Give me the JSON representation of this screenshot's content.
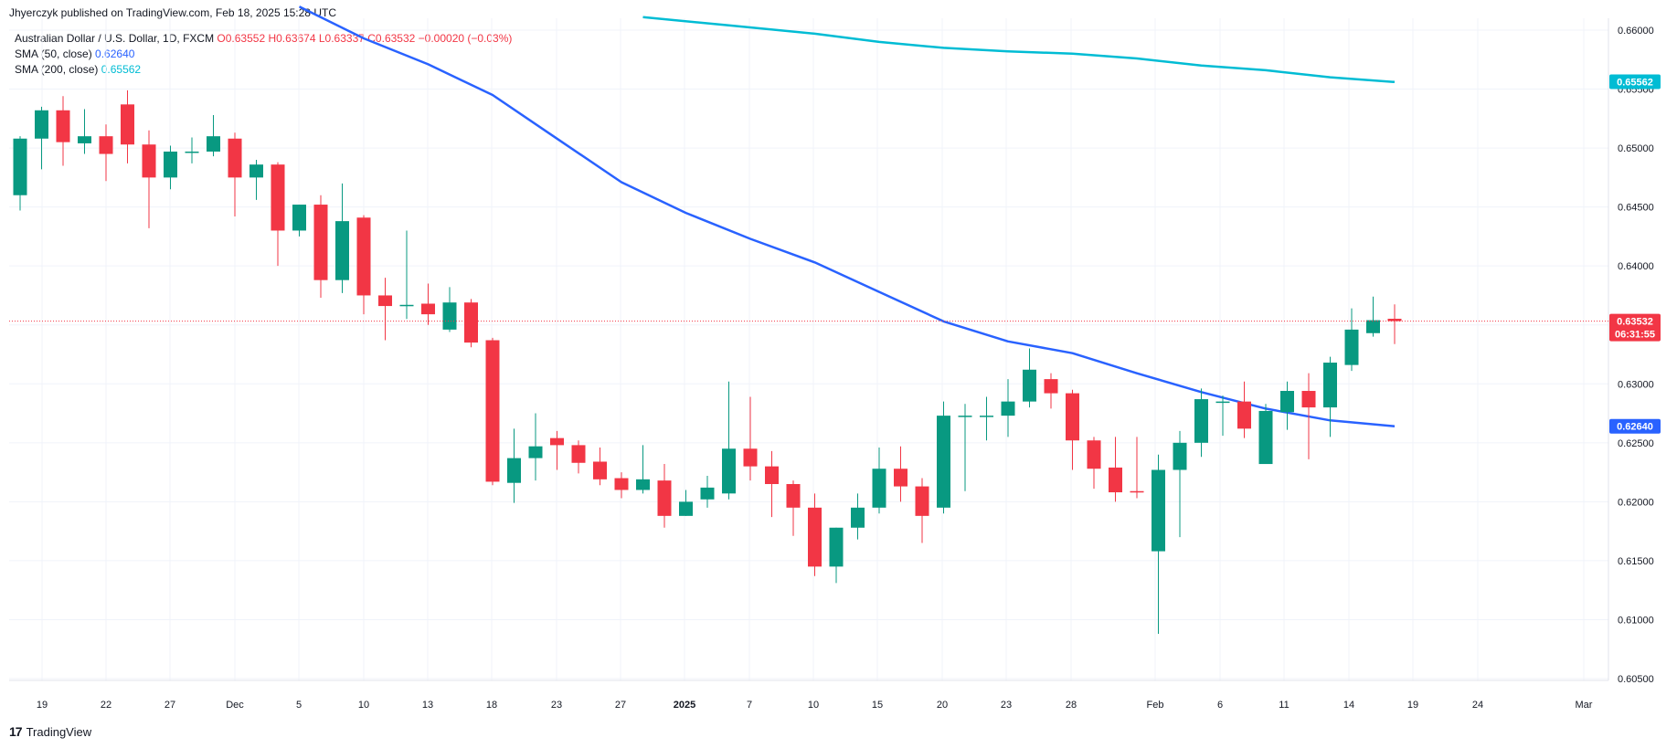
{
  "header": {
    "publisher": "Jhyerczyk published on TradingView.com, Feb 18, 2025 15:28 UTC"
  },
  "legend": {
    "symbol": "Australian Dollar / U.S. Dollar, 1D, FXCM",
    "open": "O0.63552",
    "high": "H0.63674",
    "low": "L0.63337",
    "close": "C0.63532",
    "change": "−0.00020 (−0.03%)",
    "sma50_label": "SMA (50, close)",
    "sma50_value": "0.62640",
    "sma200_label": "SMA (200, close)",
    "sma200_value": "0.65562"
  },
  "footer": {
    "brand": "TradingView",
    "logo_text": "17"
  },
  "colors": {
    "up": "#089981",
    "down": "#f23645",
    "sma50": "#2962ff",
    "sma200": "#00bcd4",
    "grid": "#f0f3fa",
    "price_line": "#f23645"
  },
  "chart_data": {
    "type": "candlestick",
    "ylim": [
      0.6025,
      0.6625
    ],
    "y_ticks": [
      "0.66000",
      "0.65500",
      "0.65000",
      "0.64500",
      "0.64000",
      "0.63500",
      "0.63000",
      "0.62500",
      "0.62000",
      "0.61500",
      "0.61000",
      "0.60500"
    ],
    "x_ticks": [
      "19",
      "22",
      "27",
      "Dec",
      "5",
      "10",
      "13",
      "18",
      "23",
      "27",
      "2025",
      "7",
      "10",
      "15",
      "20",
      "23",
      "28",
      "Feb",
      "6",
      "11",
      "14",
      "19",
      "24",
      "Mar"
    ],
    "x_ticks_bold": [
      "2025"
    ],
    "candles": [
      {
        "o": 0.646,
        "h": 0.651,
        "l": 0.6447,
        "c": 0.6508
      },
      {
        "o": 0.6508,
        "h": 0.6535,
        "l": 0.6482,
        "c": 0.6532
      },
      {
        "o": 0.6532,
        "h": 0.6544,
        "l": 0.6485,
        "c": 0.6505
      },
      {
        "o": 0.6504,
        "h": 0.6533,
        "l": 0.6495,
        "c": 0.651
      },
      {
        "o": 0.651,
        "h": 0.652,
        "l": 0.6472,
        "c": 0.6495
      },
      {
        "o": 0.6537,
        "h": 0.6549,
        "l": 0.6487,
        "c": 0.6503
      },
      {
        "o": 0.6503,
        "h": 0.6515,
        "l": 0.6432,
        "c": 0.6475
      },
      {
        "o": 0.6475,
        "h": 0.6502,
        "l": 0.6465,
        "c": 0.6497
      },
      {
        "o": 0.6496,
        "h": 0.6509,
        "l": 0.6487,
        "c": 0.6497
      },
      {
        "o": 0.6497,
        "h": 0.6528,
        "l": 0.6493,
        "c": 0.651
      },
      {
        "o": 0.6508,
        "h": 0.6513,
        "l": 0.6442,
        "c": 0.6475
      },
      {
        "o": 0.6475,
        "h": 0.649,
        "l": 0.6456,
        "c": 0.6486
      },
      {
        "o": 0.6486,
        "h": 0.6488,
        "l": 0.64,
        "c": 0.643
      },
      {
        "o": 0.643,
        "h": 0.6452,
        "l": 0.6425,
        "c": 0.6452
      },
      {
        "o": 0.6452,
        "h": 0.646,
        "l": 0.6373,
        "c": 0.6388
      },
      {
        "o": 0.6388,
        "h": 0.647,
        "l": 0.6377,
        "c": 0.6438
      },
      {
        "o": 0.6441,
        "h": 0.6443,
        "l": 0.6359,
        "c": 0.6375
      },
      {
        "o": 0.6375,
        "h": 0.639,
        "l": 0.6337,
        "c": 0.6366
      },
      {
        "o": 0.6367,
        "h": 0.643,
        "l": 0.6355,
        "c": 0.6367
      },
      {
        "o": 0.6368,
        "h": 0.6385,
        "l": 0.635,
        "c": 0.6359
      },
      {
        "o": 0.6346,
        "h": 0.6382,
        "l": 0.6344,
        "c": 0.6369
      },
      {
        "o": 0.6369,
        "h": 0.6372,
        "l": 0.6331,
        "c": 0.6335
      },
      {
        "o": 0.6337,
        "h": 0.6339,
        "l": 0.6214,
        "c": 0.6217
      },
      {
        "o": 0.6216,
        "h": 0.6262,
        "l": 0.6199,
        "c": 0.6237
      },
      {
        "o": 0.6237,
        "h": 0.6275,
        "l": 0.6218,
        "c": 0.6247
      },
      {
        "o": 0.6254,
        "h": 0.626,
        "l": 0.6227,
        "c": 0.6248
      },
      {
        "o": 0.6248,
        "h": 0.6252,
        "l": 0.6224,
        "c": 0.6233
      },
      {
        "o": 0.6234,
        "h": 0.6246,
        "l": 0.6214,
        "c": 0.6219
      },
      {
        "o": 0.622,
        "h": 0.6225,
        "l": 0.6203,
        "c": 0.621
      },
      {
        "o": 0.621,
        "h": 0.6248,
        "l": 0.6207,
        "c": 0.6219
      },
      {
        "o": 0.6218,
        "h": 0.6232,
        "l": 0.6178,
        "c": 0.6188
      },
      {
        "o": 0.6188,
        "h": 0.621,
        "l": 0.6188,
        "c": 0.62
      },
      {
        "o": 0.6202,
        "h": 0.6222,
        "l": 0.6195,
        "c": 0.6212
      },
      {
        "o": 0.6207,
        "h": 0.6302,
        "l": 0.6202,
        "c": 0.6245
      },
      {
        "o": 0.6245,
        "h": 0.6289,
        "l": 0.6218,
        "c": 0.623
      },
      {
        "o": 0.623,
        "h": 0.6243,
        "l": 0.6187,
        "c": 0.6215
      },
      {
        "o": 0.6215,
        "h": 0.6218,
        "l": 0.6171,
        "c": 0.6195
      },
      {
        "o": 0.6195,
        "h": 0.6207,
        "l": 0.6137,
        "c": 0.6145
      },
      {
        "o": 0.6145,
        "h": 0.6178,
        "l": 0.6131,
        "c": 0.6178
      },
      {
        "o": 0.6178,
        "h": 0.6207,
        "l": 0.6168,
        "c": 0.6195
      },
      {
        "o": 0.6195,
        "h": 0.6246,
        "l": 0.619,
        "c": 0.6228
      },
      {
        "o": 0.6228,
        "h": 0.6247,
        "l": 0.62,
        "c": 0.6213
      },
      {
        "o": 0.6213,
        "h": 0.622,
        "l": 0.6165,
        "c": 0.6188
      },
      {
        "o": 0.6195,
        "h": 0.6285,
        "l": 0.619,
        "c": 0.6273
      },
      {
        "o": 0.6273,
        "h": 0.6283,
        "l": 0.6209,
        "c": 0.6273
      },
      {
        "o": 0.6272,
        "h": 0.6289,
        "l": 0.6252,
        "c": 0.6273
      },
      {
        "o": 0.6273,
        "h": 0.6304,
        "l": 0.6255,
        "c": 0.6285
      },
      {
        "o": 0.6285,
        "h": 0.633,
        "l": 0.628,
        "c": 0.6312
      },
      {
        "o": 0.6304,
        "h": 0.6309,
        "l": 0.6279,
        "c": 0.6292
      },
      {
        "o": 0.6292,
        "h": 0.6295,
        "l": 0.6227,
        "c": 0.6252
      },
      {
        "o": 0.6252,
        "h": 0.6255,
        "l": 0.6211,
        "c": 0.6228
      },
      {
        "o": 0.6229,
        "h": 0.6255,
        "l": 0.62,
        "c": 0.6208
      },
      {
        "o": 0.6209,
        "h": 0.6255,
        "l": 0.6203,
        "c": 0.6208
      },
      {
        "o": 0.6158,
        "h": 0.624,
        "l": 0.6088,
        "c": 0.6227
      },
      {
        "o": 0.6227,
        "h": 0.626,
        "l": 0.617,
        "c": 0.625
      },
      {
        "o": 0.625,
        "h": 0.6296,
        "l": 0.6238,
        "c": 0.6287
      },
      {
        "o": 0.6285,
        "h": 0.629,
        "l": 0.6256,
        "c": 0.6285
      },
      {
        "o": 0.6285,
        "h": 0.6302,
        "l": 0.6254,
        "c": 0.6262
      },
      {
        "o": 0.6232,
        "h": 0.6283,
        "l": 0.6232,
        "c": 0.6277
      },
      {
        "o": 0.6276,
        "h": 0.6302,
        "l": 0.6261,
        "c": 0.6294
      },
      {
        "o": 0.6294,
        "h": 0.6309,
        "l": 0.6236,
        "c": 0.628
      },
      {
        "o": 0.628,
        "h": 0.6323,
        "l": 0.6255,
        "c": 0.6318
      },
      {
        "o": 0.6316,
        "h": 0.6364,
        "l": 0.6311,
        "c": 0.6346
      },
      {
        "o": 0.6343,
        "h": 0.6374,
        "l": 0.634,
        "c": 0.6354
      },
      {
        "o": 0.63552,
        "h": 0.63674,
        "l": 0.63337,
        "c": 0.63532
      }
    ],
    "sma50": {
      "name": "SMA (50, close)",
      "points": [
        [
          13,
          0.662
        ],
        [
          16,
          0.6593
        ],
        [
          19,
          0.6571
        ],
        [
          22,
          0.6545
        ],
        [
          25,
          0.6508
        ],
        [
          28,
          0.6471
        ],
        [
          31,
          0.6445
        ],
        [
          34,
          0.6423
        ],
        [
          37,
          0.6403
        ],
        [
          40,
          0.6378
        ],
        [
          43,
          0.6353
        ],
        [
          46,
          0.6336
        ],
        [
          49,
          0.6326
        ],
        [
          52,
          0.6309
        ],
        [
          55,
          0.6293
        ],
        [
          58,
          0.6279
        ],
        [
          61,
          0.6269
        ],
        [
          64,
          0.6264
        ]
      ]
    },
    "sma200": {
      "name": "SMA (200, close)",
      "points": [
        [
          29,
          0.6611
        ],
        [
          33,
          0.6604
        ],
        [
          37,
          0.6597
        ],
        [
          40,
          0.659
        ],
        [
          43,
          0.6585
        ],
        [
          46,
          0.6582
        ],
        [
          49,
          0.658
        ],
        [
          52,
          0.6576
        ],
        [
          55,
          0.657
        ],
        [
          58,
          0.6566
        ],
        [
          61,
          0.656
        ],
        [
          64,
          0.6556
        ]
      ]
    },
    "last_price": "0.63532",
    "countdown": "06:31:55",
    "sma50_tag": "0.62640",
    "sma200_tag": "0.65562"
  }
}
